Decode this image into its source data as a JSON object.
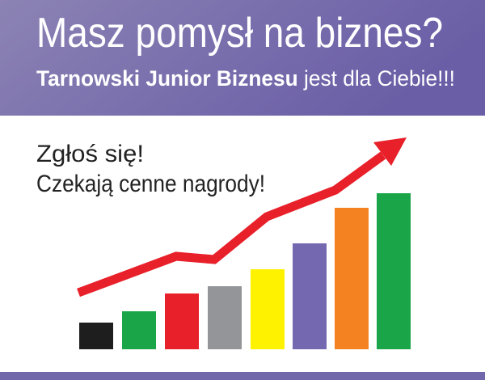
{
  "header": {
    "title": "Masz pomysł na biznes?",
    "subtitle_bold": "Tarnowski Junior Biznesu",
    "subtitle_rest": "jest dla Ciebie!!!"
  },
  "body": {
    "lines": [
      "Zgłoś się!",
      "Czekają cenne nagrody!"
    ]
  }
}
